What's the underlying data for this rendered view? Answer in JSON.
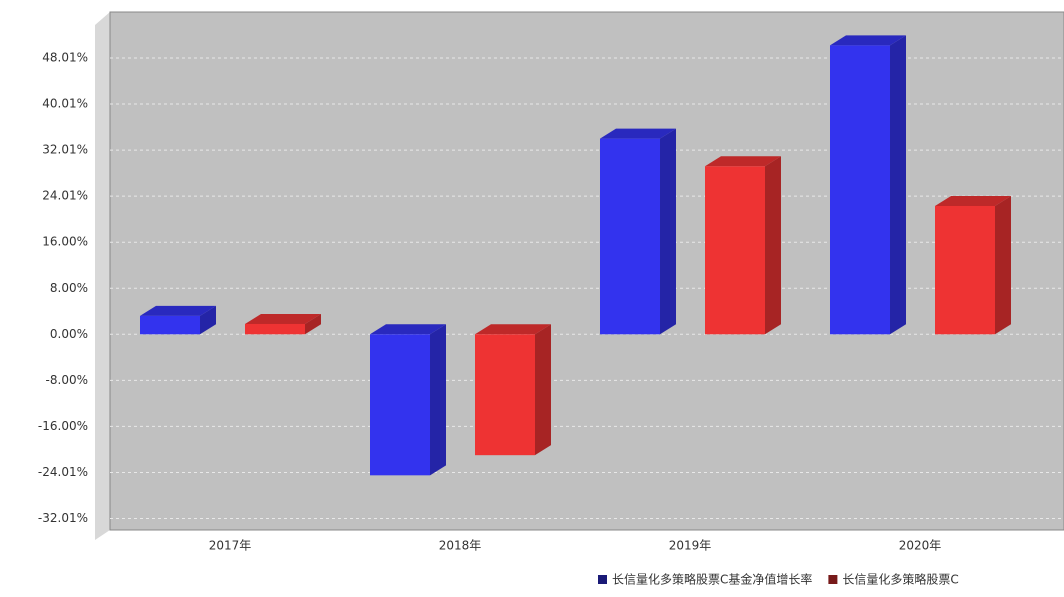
{
  "chart_data": {
    "type": "bar3d",
    "categories": [
      "2017年",
      "2018年",
      "2019年",
      "2020年"
    ],
    "series": [
      {
        "name": "长信量化多策略股票C基金净值增长率",
        "color": "#3333ee",
        "values": [
          3.2,
          -24.5,
          34.0,
          50.2
        ]
      },
      {
        "name": "长信量化多策略股票C",
        "color": "#ee3333",
        "values": [
          1.8,
          -21.0,
          29.2,
          22.3
        ]
      }
    ],
    "ylim": [
      -34,
      56
    ],
    "yticks": [
      {
        "value": -32.01,
        "label": "-32.01%"
      },
      {
        "value": -24.01,
        "label": "-24.01%"
      },
      {
        "value": -16.0,
        "label": "-16.00%"
      },
      {
        "value": -8.0,
        "label": "-8.00%"
      },
      {
        "value": 0.0,
        "label": "0.00%"
      },
      {
        "value": 8.0,
        "label": "8.00%"
      },
      {
        "value": 16.0,
        "label": "16.00%"
      },
      {
        "value": 24.01,
        "label": "24.01%"
      },
      {
        "value": 32.01,
        "label": "32.01%"
      },
      {
        "value": 40.01,
        "label": "40.01%"
      },
      {
        "value": 48.01,
        "label": "48.01%"
      }
    ],
    "grid": true
  }
}
